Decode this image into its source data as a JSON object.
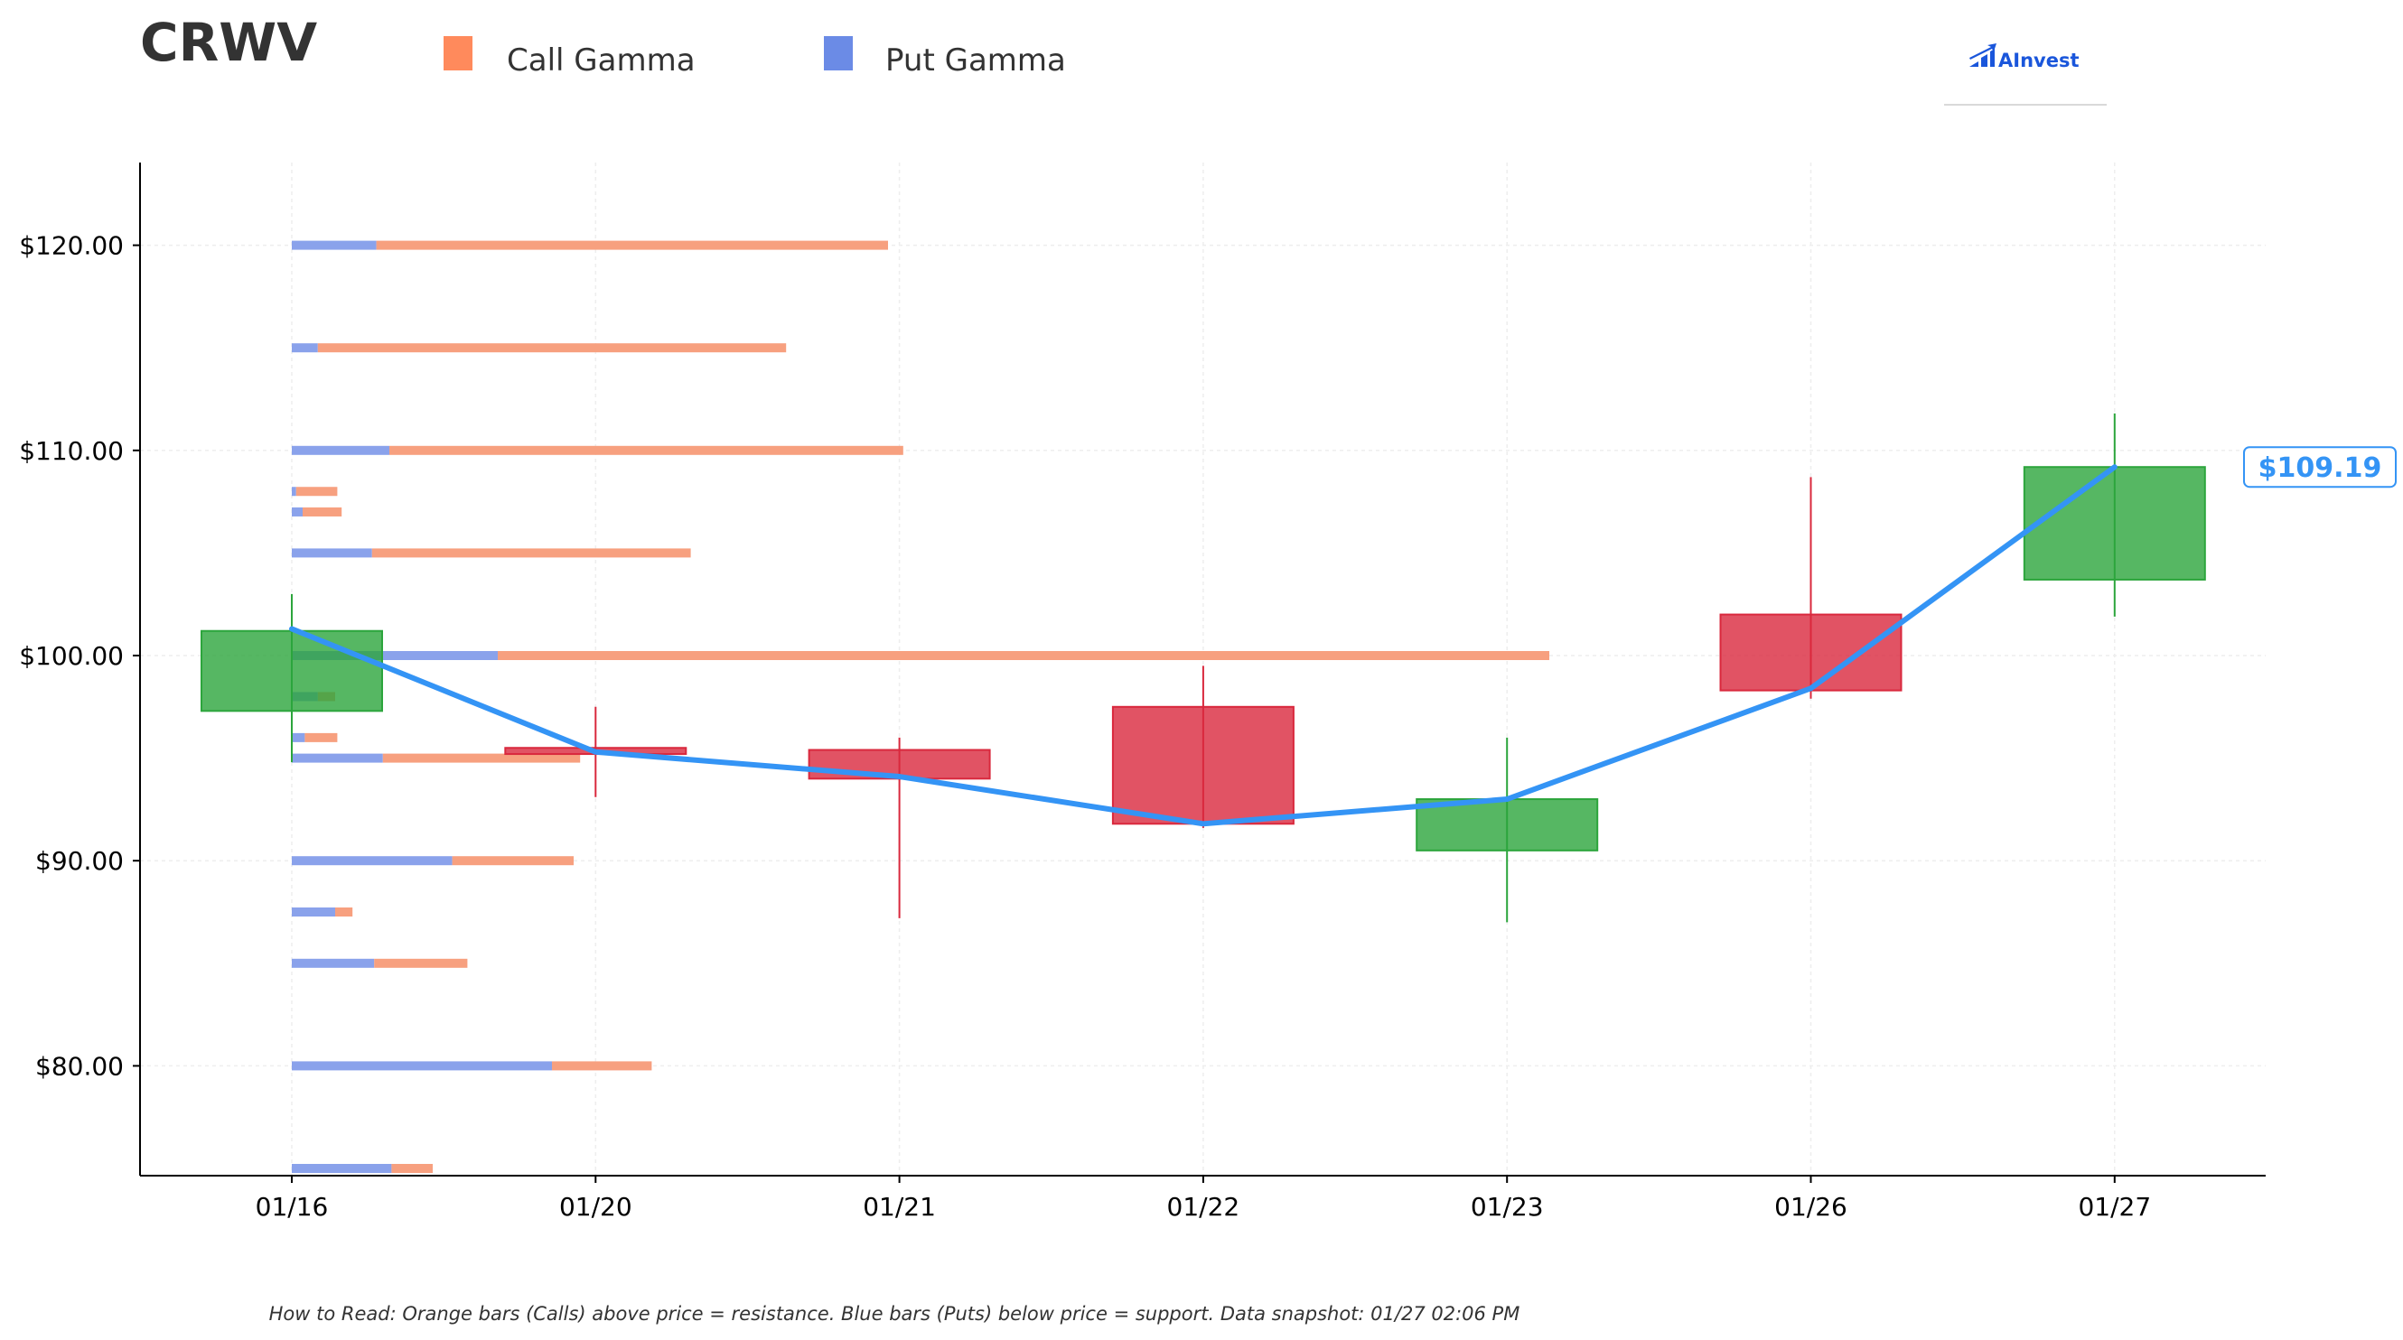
{
  "chart_data": {
    "type": "candlestick",
    "ticker": "CRWV",
    "legend": [
      {
        "name": "Call Gamma",
        "color": "#ff8a5c"
      },
      {
        "name": "Put Gamma",
        "color": "#6b8be6"
      }
    ],
    "logo_text": "AInvest",
    "categories": [
      "01/16",
      "01/20",
      "01/21",
      "01/22",
      "01/23",
      "01/26",
      "01/27"
    ],
    "y_ticks": [
      80,
      90,
      100,
      110,
      120
    ],
    "y_tick_labels": [
      "$80.00",
      "$90.00",
      "$100.00",
      "$110.00",
      "$120.00"
    ],
    "ylim": [
      74.8,
      124
    ],
    "candles": [
      {
        "date": "01/16",
        "open": 97.3,
        "high": 103.0,
        "low": 94.8,
        "close": 101.2
      },
      {
        "date": "01/20",
        "open": 95.5,
        "high": 97.5,
        "low": 93.1,
        "close": 95.2
      },
      {
        "date": "01/21",
        "open": 95.4,
        "high": 96.0,
        "low": 87.2,
        "close": 94.0
      },
      {
        "date": "01/22",
        "open": 97.5,
        "high": 99.5,
        "low": 91.6,
        "close": 91.8
      },
      {
        "date": "01/23",
        "open": 90.5,
        "high": 96.0,
        "low": 87.0,
        "close": 93.0
      },
      {
        "date": "01/26",
        "open": 102.0,
        "high": 108.7,
        "low": 97.9,
        "close": 98.3
      },
      {
        "date": "01/27",
        "open": 103.7,
        "high": 111.8,
        "low": 101.9,
        "close": 109.19
      }
    ],
    "price_line": [
      101.3,
      95.3,
      94.1,
      91.8,
      93.0,
      98.4,
      109.19
    ],
    "last_price_label": "$109.19",
    "gamma_levels": [
      {
        "strike": 75,
        "put": 0.46,
        "call": 0.19
      },
      {
        "strike": 80,
        "put": 1.2,
        "call": 0.46
      },
      {
        "strike": 85,
        "put": 0.38,
        "call": 0.43
      },
      {
        "strike": 87.5,
        "put": 0.2,
        "call": 0.08
      },
      {
        "strike": 90,
        "put": 0.74,
        "call": 0.56
      },
      {
        "strike": 95,
        "put": 0.42,
        "call": 0.91
      },
      {
        "strike": 96,
        "put": 0.06,
        "call": 0.15
      },
      {
        "strike": 98,
        "put": 0.12,
        "call": 0.08
      },
      {
        "strike": 100,
        "put": 0.95,
        "call": 4.85
      },
      {
        "strike": 105,
        "put": 0.37,
        "call": 1.47
      },
      {
        "strike": 107,
        "put": 0.05,
        "call": 0.18
      },
      {
        "strike": 108,
        "put": 0.02,
        "call": 0.19
      },
      {
        "strike": 110,
        "put": 0.45,
        "call": 2.37
      },
      {
        "strike": 115,
        "put": 0.12,
        "call": 2.16
      },
      {
        "strike": 120,
        "put": 0.39,
        "call": 2.36
      }
    ],
    "footnote": "How to Read: Orange bars (Calls) above price = resistance. Blue bars (Puts) below price = support. Data snapshot: 01/27 02:06 PM",
    "colors": {
      "up": "#2ca53c",
      "down": "#d9283d",
      "price_line": "#3494f5",
      "call": "#f7a07f",
      "put": "#8aa2eb",
      "ticker_text": "#333333",
      "logo": "#1a56db"
    },
    "grid": true
  }
}
